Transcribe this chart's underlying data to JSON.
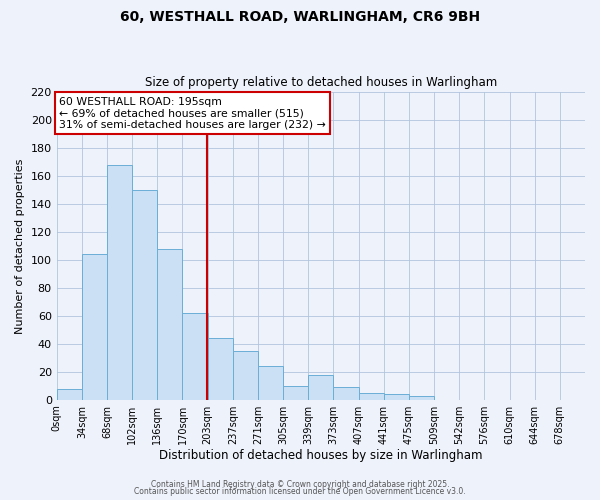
{
  "title_line1": "60, WESTHALL ROAD, WARLINGHAM, CR6 9BH",
  "title_line2": "Size of property relative to detached houses in Warlingham",
  "xlabel": "Distribution of detached houses by size in Warlingham",
  "ylabel": "Number of detached properties",
  "bin_labels": [
    "0sqm",
    "34sqm",
    "68sqm",
    "102sqm",
    "136sqm",
    "170sqm",
    "203sqm",
    "237sqm",
    "271sqm",
    "305sqm",
    "339sqm",
    "373sqm",
    "407sqm",
    "441sqm",
    "475sqm",
    "509sqm",
    "542sqm",
    "576sqm",
    "610sqm",
    "644sqm",
    "678sqm"
  ],
  "bar_values": [
    8,
    104,
    168,
    150,
    108,
    62,
    44,
    35,
    24,
    10,
    18,
    9,
    5,
    4,
    3,
    0,
    0,
    0,
    0,
    0,
    0
  ],
  "bar_color": "#cce0f5",
  "bar_edge_color": "#6aaed6",
  "grid_color": "#b0c4de",
  "background_color": "#eef2fb",
  "vline_x": 203,
  "vline_color": "#cc0000",
  "ylim": [
    0,
    220
  ],
  "yticks": [
    0,
    20,
    40,
    60,
    80,
    100,
    120,
    140,
    160,
    180,
    200,
    220
  ],
  "annotation_title": "60 WESTHALL ROAD: 195sqm",
  "annotation_line2": "← 69% of detached houses are smaller (515)",
  "annotation_line3": "31% of semi-detached houses are larger (232) →",
  "annotation_box_edge": "#cc0000",
  "footer_line1": "Contains HM Land Registry data © Crown copyright and database right 2025.",
  "footer_line2": "Contains public sector information licensed under the Open Government Licence v3.0.",
  "bin_width": 34,
  "n_bins": 21
}
